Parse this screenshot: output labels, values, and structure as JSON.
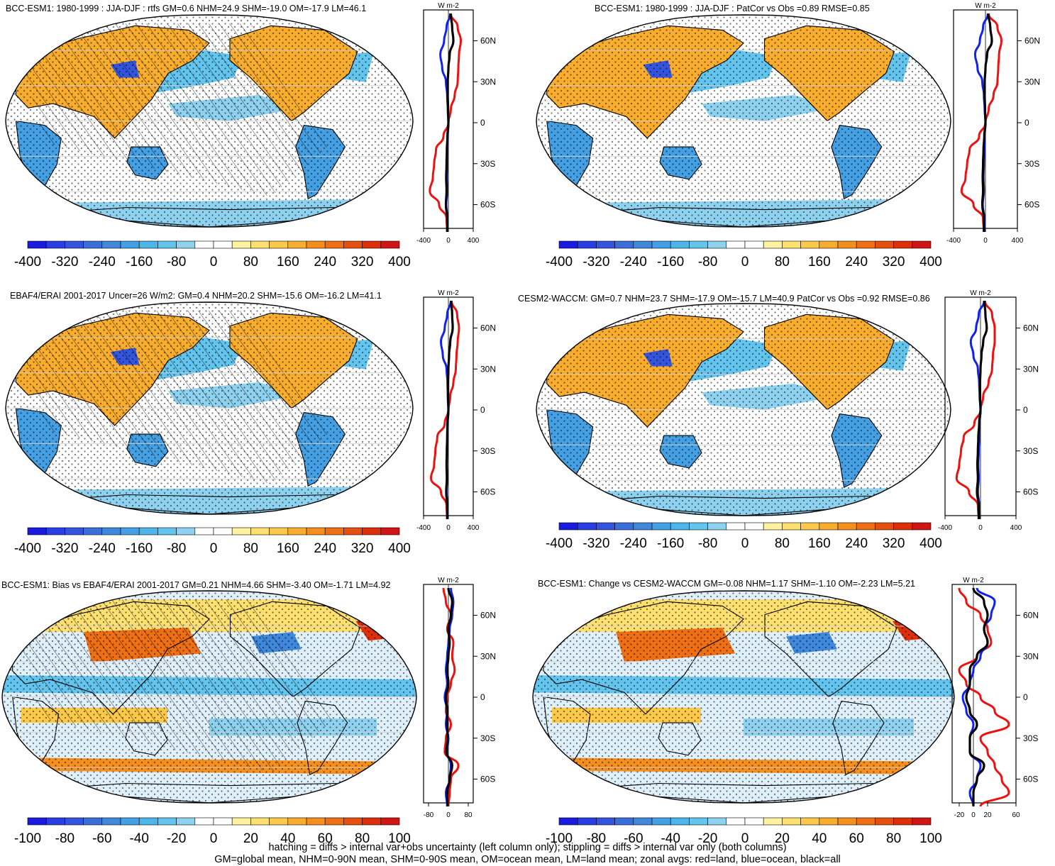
{
  "footer": {
    "line1": "hatching = diffs > internal var+obs uncertainty (left column only); stippling = diffs > internal var only (both columns)",
    "line2": "GM=global mean, NHM=0-90N mean, SHM=0-90S mean, OM=ocean mean, LM=land mean; zonal avgs: red=land, blue=ocean, black=all"
  },
  "colors": {
    "land": "#ee1111",
    "ocean": "#1122ee",
    "all": "#000000"
  },
  "chart_data": [
    {
      "type": "map",
      "title": "BCC-ESM1: 1980-1999 : JJA-DJF : rtfs GM=0.6 NHM=24.9 SHM=-19.0 OM=-17.9 LM=46.1",
      "variant": "main",
      "hatch": true,
      "colorbar": {
        "ticks": [
          "-400",
          "-320",
          "-240",
          "-160",
          "-80",
          "0",
          "80",
          "160",
          "240",
          "320",
          "400"
        ],
        "min": -400,
        "max": 400
      },
      "zonal": {
        "unit": "W m-2",
        "xlim": [
          -400,
          400
        ],
        "xticks": [
          "-400",
          "0",
          "400"
        ],
        "lat_ticks": [
          "60N",
          "30N",
          "0",
          "30S",
          "60S"
        ],
        "lat": [
          80,
          70,
          60,
          50,
          40,
          30,
          20,
          10,
          0,
          -10,
          -20,
          -30,
          -40,
          -50,
          -60,
          -70,
          -80
        ],
        "land": [
          40,
          150,
          200,
          170,
          160,
          150,
          100,
          40,
          0,
          -80,
          -200,
          -230,
          -250,
          -300,
          -150,
          -30,
          -20
        ],
        "ocean": [
          30,
          -30,
          -70,
          -130,
          -100,
          -40,
          -20,
          -10,
          0,
          -10,
          -15,
          -20,
          -25,
          -20,
          -35,
          -15,
          -15
        ],
        "all": [
          35,
          60,
          80,
          20,
          0,
          -10,
          -10,
          -5,
          0,
          -15,
          -25,
          -30,
          -35,
          -30,
          -40,
          -20,
          -20
        ]
      }
    },
    {
      "type": "map",
      "title": "BCC-ESM1: 1980-1999 : JJA-DJF : PatCor vs Obs =0.89 RMSE=0.85",
      "variant": "main",
      "hatch": false,
      "colorbar": {
        "ticks": [
          "-400",
          "-320",
          "-240",
          "-160",
          "-80",
          "0",
          "80",
          "160",
          "240",
          "320",
          "400"
        ],
        "min": -400,
        "max": 400
      },
      "zonal": {
        "unit": "W m-2",
        "xlim": [
          -400,
          400
        ],
        "xticks": [
          "-400",
          "0",
          "400"
        ],
        "lat_ticks": [
          "60N",
          "30N",
          "0",
          "30S",
          "60S"
        ],
        "lat": [
          80,
          70,
          60,
          50,
          40,
          30,
          20,
          10,
          0,
          -10,
          -20,
          -30,
          -40,
          -50,
          -60,
          -70,
          -80
        ],
        "land": [
          40,
          150,
          200,
          170,
          160,
          150,
          100,
          40,
          0,
          -80,
          -200,
          -230,
          -250,
          -300,
          -150,
          -30,
          -20
        ],
        "ocean": [
          30,
          -30,
          -70,
          -130,
          -100,
          -40,
          -20,
          -10,
          0,
          -10,
          -15,
          -20,
          -25,
          -20,
          -35,
          -15,
          -15
        ],
        "all": [
          35,
          60,
          80,
          20,
          0,
          -10,
          -10,
          -5,
          0,
          -15,
          -25,
          -30,
          -35,
          -30,
          -40,
          -20,
          -20
        ]
      }
    },
    {
      "type": "map",
      "title": "EBAF4/ERAI 2001-2017 Uncer=26 W/m2: GM=0.4 NHM=20.2 SHM=-15.6 OM=-16.2 LM=41.1",
      "variant": "main",
      "hatch": true,
      "colorbar": {
        "ticks": [
          "-400",
          "-320",
          "-240",
          "-160",
          "-80",
          "0",
          "80",
          "160",
          "240",
          "320",
          "400"
        ],
        "min": -400,
        "max": 400
      },
      "zonal": {
        "unit": "W m-2",
        "xlim": [
          -400,
          400
        ],
        "xticks": [
          "-400",
          "0",
          "400"
        ],
        "lat_ticks": [
          "60N",
          "30N",
          "0",
          "30S",
          "60S"
        ],
        "lat": [
          80,
          70,
          60,
          50,
          40,
          30,
          20,
          10,
          0,
          -10,
          -20,
          -30,
          -40,
          -50,
          -60,
          -70,
          -80
        ],
        "land": [
          50,
          140,
          170,
          150,
          130,
          120,
          80,
          30,
          0,
          -60,
          -180,
          -210,
          -230,
          -280,
          -120,
          -30,
          -20
        ],
        "ocean": [
          40,
          -20,
          -60,
          -120,
          -90,
          -30,
          -15,
          -10,
          0,
          -10,
          -15,
          -20,
          -25,
          -20,
          -30,
          -15,
          -15
        ],
        "all": [
          45,
          60,
          70,
          30,
          10,
          0,
          -5,
          -5,
          0,
          -15,
          -20,
          -25,
          -30,
          -25,
          -35,
          -20,
          -20
        ]
      }
    },
    {
      "type": "map",
      "title": "CESM2-WACCM: GM=0.7 NHM=23.7 SHM=-17.9 OM=-15.7 LM=40.9 PatCor vs Obs =0.92 RMSE=0.86",
      "variant": "main",
      "hatch": false,
      "colorbar": {
        "ticks": [
          "-400",
          "-320",
          "-240",
          "-160",
          "-80",
          "0",
          "80",
          "160",
          "240",
          "320",
          "400"
        ],
        "min": -400,
        "max": 400
      },
      "zonal": {
        "unit": "W m-2",
        "xlim": [
          -400,
          400
        ],
        "xticks": [
          "-400",
          "0",
          "400"
        ],
        "lat_ticks": [
          "60N",
          "30N",
          "0",
          "30S",
          "60S"
        ],
        "lat": [
          80,
          70,
          60,
          50,
          40,
          30,
          20,
          10,
          0,
          -10,
          -20,
          -30,
          -40,
          -50,
          -60,
          -70,
          -80
        ],
        "land": [
          50,
          130,
          160,
          160,
          140,
          130,
          90,
          30,
          0,
          -70,
          -190,
          -220,
          -240,
          -270,
          -130,
          -30,
          -20
        ],
        "ocean": [
          40,
          -20,
          -50,
          -110,
          -80,
          -30,
          -15,
          -10,
          0,
          -10,
          -15,
          -20,
          -25,
          -20,
          -30,
          -15,
          -15
        ],
        "all": [
          45,
          55,
          70,
          30,
          10,
          0,
          -5,
          -5,
          0,
          -15,
          -25,
          -30,
          -35,
          -30,
          -40,
          -20,
          -20
        ]
      }
    },
    {
      "type": "map",
      "title": "BCC-ESM1: Bias vs EBAF4/ERAI 2001-2017 GM=0.21 NHM=4.66 SHM=-3.40 OM=-1.71 LM=4.92",
      "variant": "diff",
      "hatch": true,
      "colorbar": {
        "ticks": [
          "-100",
          "-80",
          "-60",
          "-40",
          "-20",
          "0",
          "20",
          "40",
          "60",
          "80",
          "100"
        ],
        "min": -100,
        "max": 100
      },
      "zonal": {
        "unit": "W m-2",
        "xlim": [
          -100,
          100
        ],
        "xticks": [
          "-80",
          "0",
          "80"
        ],
        "lat_ticks": [
          "60N",
          "30N",
          "0",
          "30S",
          "60S"
        ],
        "lat": [
          80,
          70,
          60,
          50,
          40,
          30,
          20,
          10,
          0,
          -10,
          -20,
          -30,
          -40,
          -50,
          -60,
          -70,
          -80
        ],
        "land": [
          -20,
          -10,
          10,
          -5,
          20,
          15,
          25,
          10,
          -5,
          -10,
          10,
          -10,
          -15,
          40,
          10,
          5,
          0
        ],
        "ocean": [
          10,
          20,
          15,
          5,
          0,
          -5,
          -10,
          -5,
          -15,
          -5,
          -10,
          0,
          -5,
          10,
          5,
          -10,
          -5
        ],
        "all": [
          0,
          15,
          10,
          0,
          5,
          0,
          -5,
          0,
          -10,
          -5,
          -5,
          -3,
          -8,
          15,
          5,
          -5,
          -3
        ]
      }
    },
    {
      "type": "map",
      "title": "BCC-ESM1: Change vs CESM2-WACCM GM=-0.08 NHM=1.17 SHM=-1.10 OM=-2.23 LM=5.21",
      "variant": "diff",
      "hatch": false,
      "colorbar": {
        "ticks": [
          "-100",
          "-80",
          "-60",
          "-40",
          "-20",
          "0",
          "20",
          "40",
          "60",
          "80",
          "100"
        ],
        "min": -100,
        "max": 100
      },
      "zonal": {
        "unit": "W m-2",
        "xlim": [
          -30,
          60
        ],
        "xticks": [
          "-20",
          "0",
          "20",
          "60"
        ],
        "lat_ticks": [
          "60N",
          "30N",
          "0",
          "30S",
          "60S"
        ],
        "lat": [
          80,
          70,
          60,
          50,
          40,
          30,
          20,
          10,
          0,
          -10,
          -20,
          -30,
          -40,
          -50,
          -60,
          -70,
          -80
        ],
        "land": [
          -20,
          -10,
          10,
          20,
          25,
          5,
          -20,
          -10,
          10,
          30,
          50,
          10,
          20,
          30,
          40,
          50,
          10
        ],
        "ocean": [
          5,
          30,
          25,
          15,
          20,
          10,
          0,
          -5,
          -15,
          -10,
          0,
          -5,
          -5,
          10,
          5,
          -5,
          0
        ],
        "all": [
          0,
          15,
          20,
          15,
          20,
          5,
          -5,
          -5,
          -10,
          -5,
          5,
          -5,
          -5,
          15,
          5,
          0,
          0
        ]
      }
    }
  ]
}
